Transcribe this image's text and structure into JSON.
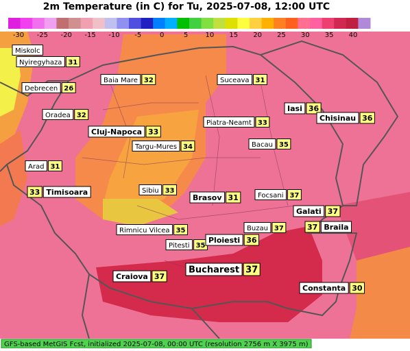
{
  "header": {
    "title": "2m Temperature (in C) for Tu, 2025-07-08, 12:00 UTC"
  },
  "legend": {
    "ticks": [
      "-30",
      "-25",
      "-20",
      "-15",
      "-10",
      "-5",
      "0",
      "5",
      "10",
      "15",
      "20",
      "25",
      "30",
      "35",
      "40"
    ]
  },
  "cities": [
    {
      "name": "Miskolc"
    },
    {
      "name": "Nyiregyhaza",
      "temp": "31"
    },
    {
      "name": "Debrecen",
      "temp": "26"
    },
    {
      "name": "Oradea",
      "temp": "32"
    },
    {
      "name": "Baia Mare",
      "temp": "32"
    },
    {
      "name": "Suceava",
      "temp": "31"
    },
    {
      "name": "Iasi",
      "temp": "36"
    },
    {
      "name": "Chisinau",
      "temp": "36"
    },
    {
      "name": "Piatra-Neamt",
      "temp": "33"
    },
    {
      "name": "Cluj-Napoca",
      "temp": "33"
    },
    {
      "name": "Targu-Mures",
      "temp": "34"
    },
    {
      "name": "Bacau",
      "temp": "35"
    },
    {
      "name": "Arad",
      "temp": "31"
    },
    {
      "name": "Timisoara",
      "temp": "33"
    },
    {
      "name": "Sibiu",
      "temp": "33"
    },
    {
      "name": "Brasov",
      "temp": "31"
    },
    {
      "name": "Focsani",
      "temp": "37"
    },
    {
      "name": "Galati",
      "temp": "37"
    },
    {
      "name": "Braila",
      "temp": "37"
    },
    {
      "name": "Buzau",
      "temp": "37"
    },
    {
      "name": "Rimnicu Vilcea",
      "temp": "35"
    },
    {
      "name": "Pitesti",
      "temp": "35"
    },
    {
      "name": "Ploiesti",
      "temp": "36"
    },
    {
      "name": "Craiova",
      "temp": "37"
    },
    {
      "name": "Bucharest",
      "temp": "37"
    },
    {
      "name": "Constanta",
      "temp": "30"
    }
  ],
  "footer": "GFS-based MetGIS Fcst, initialized 2025-07-08, 00:00 UTC  (resolution 2756 m X 3975 m)"
}
